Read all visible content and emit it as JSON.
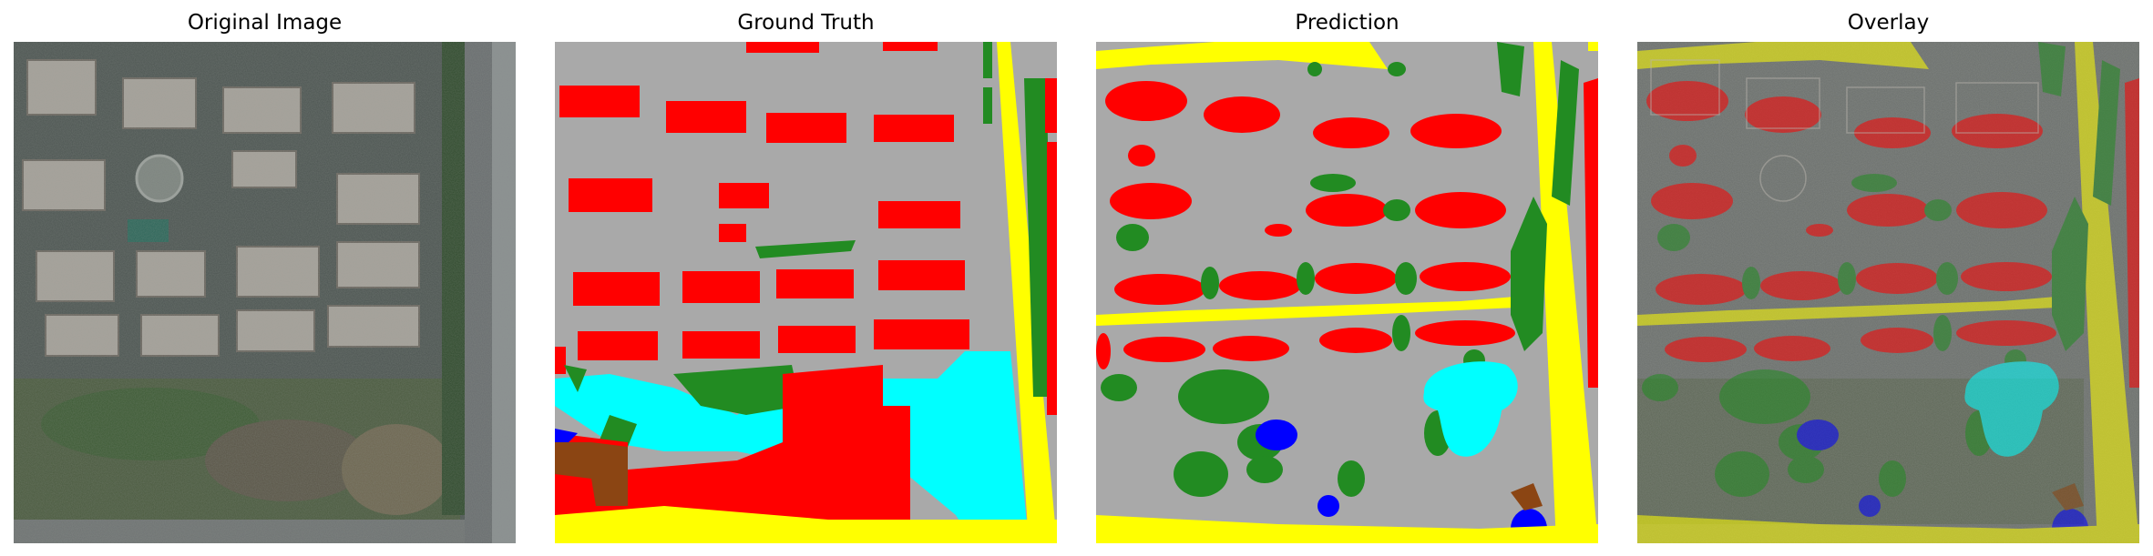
{
  "panels": [
    {
      "title": "Original Image"
    },
    {
      "title": "Ground Truth"
    },
    {
      "title": "Prediction"
    },
    {
      "title": "Overlay"
    }
  ],
  "colors": {
    "background_gray": "#a9a9a9",
    "building_red": "#ff0000",
    "road_yellow": "#ffff00",
    "vegetation_green": "#228b22",
    "water_blue": "#0000ff",
    "cyan_region": "#00ffff",
    "barren_brown": "#8b4513"
  }
}
